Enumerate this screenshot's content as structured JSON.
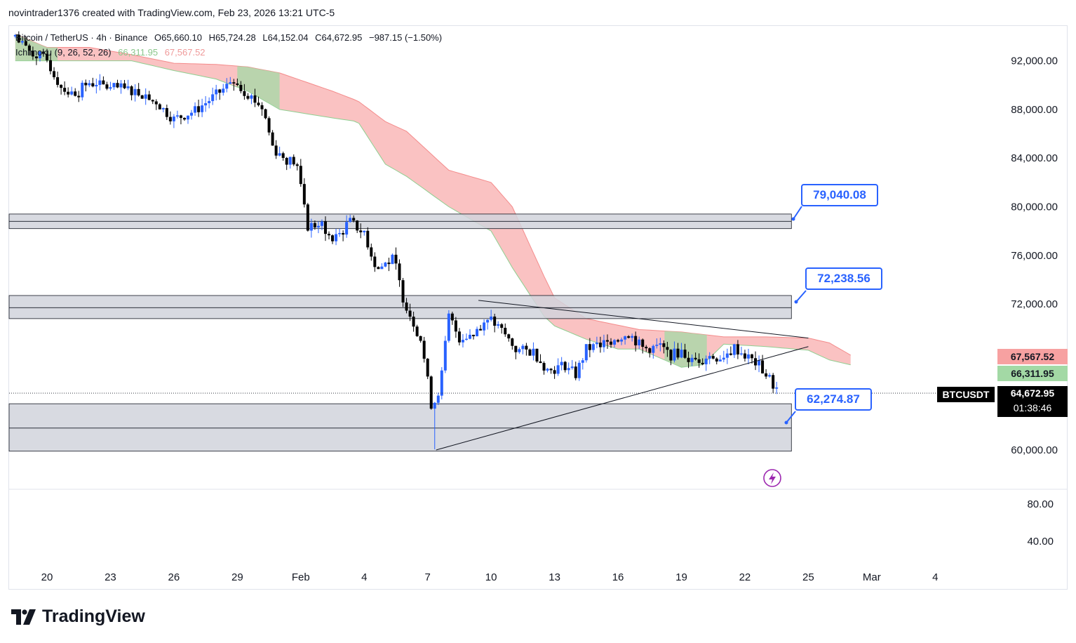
{
  "credit": "novintrader1376 created with TradingView.com, Feb 23, 2026 13:21 UTC-5",
  "legend": {
    "symbol": "Bitcoin / TetherUS · 4h · Binance",
    "open": "O65,660.10",
    "high": "H65,724.28",
    "low": "L64,152.04",
    "close": "C64,672.95",
    "change": "−987.15 (−1.50%)",
    "indicator": "Ichimoku (9, 26, 52, 26)",
    "ind_val1": "66,311.95",
    "ind_val2": "67,567.52"
  },
  "price_tags": {
    "span_b": "67,567.52",
    "span_a": "66,311.95",
    "symbol": "BTCUSDT",
    "last": "64,672.95",
    "countdown": "01:38:46"
  },
  "callouts": [
    "79,040.08",
    "72,238.56",
    "62,274.87"
  ],
  "logo": "TradingView",
  "colors": {
    "up": "#2962ff",
    "down": "#000000",
    "cloud_bear": "#f7a1a1",
    "cloud_bull": "#a3d9a5",
    "callout": "#2962ff",
    "zone": "#d1d4dc"
  },
  "chart_data": {
    "type": "candlestick",
    "symbol": "BTCUSDT",
    "timeframe": "4h",
    "y_axis_labels": [
      "92,000.00",
      "88,000.00",
      "84,000.00",
      "80,000.00",
      "76,000.00",
      "72,000.00",
      "60,000.00"
    ],
    "y_ticks": [
      92000,
      88000,
      84000,
      80000,
      76000,
      72000,
      60000
    ],
    "oscillator_labels": [
      "80.00",
      "40.00"
    ],
    "x_axis_labels": [
      "20",
      "23",
      "26",
      "29",
      "Feb",
      "4",
      "7",
      "10",
      "13",
      "16",
      "19",
      "22",
      "25",
      "Mar",
      "4"
    ],
    "x_days": [
      0,
      3,
      6,
      9,
      12,
      15,
      18,
      21,
      24,
      27,
      30,
      33,
      36,
      39,
      42
    ],
    "x_range_days": [
      -1.5,
      45
    ],
    "y_range": [
      56500,
      95300
    ],
    "key_closes": [
      [
        -1.5,
        94000
      ],
      [
        -1.2,
        93200
      ],
      [
        0,
        92000
      ],
      [
        0.6,
        90000
      ],
      [
        1.2,
        89200
      ],
      [
        2,
        90200
      ],
      [
        3,
        89800
      ],
      [
        4,
        89600
      ],
      [
        5,
        89000
      ],
      [
        5.5,
        88000
      ],
      [
        6,
        87200
      ],
      [
        7,
        87900
      ],
      [
        8,
        89200
      ],
      [
        8.8,
        90300
      ],
      [
        9.5,
        89300
      ],
      [
        10.2,
        88100
      ],
      [
        10.7,
        84800
      ],
      [
        11.3,
        83900
      ],
      [
        11.8,
        83600
      ],
      [
        12.3,
        78400
      ],
      [
        13,
        78600
      ],
      [
        13.5,
        77100
      ],
      [
        14.3,
        78800
      ],
      [
        15,
        77800
      ],
      [
        15.6,
        74800
      ],
      [
        16.4,
        75800
      ],
      [
        16.8,
        72700
      ],
      [
        17.2,
        71000
      ],
      [
        17.7,
        69000
      ],
      [
        18.2,
        63400
      ],
      [
        18.6,
        65300
      ],
      [
        19,
        71000
      ],
      [
        19.5,
        69200
      ],
      [
        20.3,
        69700
      ],
      [
        21,
        70700
      ],
      [
        21.6,
        69600
      ],
      [
        22.2,
        68200
      ],
      [
        23,
        68100
      ],
      [
        23.7,
        66500
      ],
      [
        24.5,
        67000
      ],
      [
        25,
        66200
      ],
      [
        25.5,
        68300
      ],
      [
        26.3,
        68700
      ],
      [
        26.9,
        69200
      ],
      [
        27.5,
        69600
      ],
      [
        28.2,
        68300
      ],
      [
        29,
        68500
      ],
      [
        29.5,
        67800
      ],
      [
        30,
        68100
      ],
      [
        30.5,
        67300
      ],
      [
        31.2,
        67700
      ],
      [
        31.8,
        67600
      ],
      [
        32.5,
        68400
      ],
      [
        33,
        67800
      ],
      [
        33.7,
        66900
      ],
      [
        34.2,
        65700
      ],
      [
        34.6,
        64700
      ]
    ],
    "ichimoku": {
      "params": [
        9,
        26,
        52,
        26
      ],
      "span_a": 66311.95,
      "span_b": 67567.52,
      "cloud_top": [
        [
          -1.5,
          94200
        ],
        [
          0,
          93100
        ],
        [
          2,
          93100
        ],
        [
          4,
          92500
        ],
        [
          6,
          91800
        ],
        [
          8,
          91700
        ],
        [
          9.5,
          91500
        ],
        [
          11,
          91000
        ],
        [
          13.5,
          89500
        ],
        [
          14.7,
          88700
        ],
        [
          16,
          87000
        ],
        [
          17,
          86200
        ],
        [
          19,
          83000
        ],
        [
          21,
          82000
        ],
        [
          22,
          80000
        ],
        [
          23.5,
          74300
        ],
        [
          24,
          72500
        ],
        [
          25.5,
          70800
        ],
        [
          28,
          69900
        ],
        [
          30,
          69700
        ],
        [
          32,
          69300
        ],
        [
          34,
          69300
        ],
        [
          36,
          69200
        ],
        [
          37,
          68800
        ],
        [
          38,
          67800
        ]
      ],
      "cloud_bottom": [
        [
          -1.5,
          92000
        ],
        [
          0,
          92000
        ],
        [
          4,
          92000
        ],
        [
          6,
          91200
        ],
        [
          8,
          90500
        ],
        [
          9.5,
          89500
        ],
        [
          11,
          88000
        ],
        [
          13.5,
          87300
        ],
        [
          14.7,
          87000
        ],
        [
          16,
          83500
        ],
        [
          17,
          82500
        ],
        [
          19,
          80000
        ],
        [
          21,
          78000
        ],
        [
          22,
          75000
        ],
        [
          23.5,
          71000
        ],
        [
          24,
          70200
        ],
        [
          25.5,
          69100
        ],
        [
          27,
          68300
        ],
        [
          28,
          68300
        ],
        [
          30,
          66800
        ],
        [
          31,
          67000
        ],
        [
          32,
          68700
        ],
        [
          34,
          68500
        ],
        [
          36,
          68200
        ],
        [
          37,
          67400
        ],
        [
          38,
          67000
        ]
      ],
      "bullish_segments": [
        [
          -1.5,
          0.5
        ],
        [
          9,
          11
        ],
        [
          29.2,
          31.2
        ]
      ]
    },
    "zones": [
      {
        "top": 79400,
        "bottom": 78200,
        "mid": 78800,
        "end_day": 35.2
      },
      {
        "top": 72700,
        "bottom": 70800,
        "mid": 71700,
        "end_day": 35.2
      },
      {
        "top": 63800,
        "bottom": 59900,
        "mid": 61800,
        "end_day": 35.2
      }
    ],
    "trendlines": [
      {
        "from": [
          20.4,
          72300
        ],
        "to": [
          36,
          69200
        ]
      },
      {
        "from": [
          18.4,
          60000
        ],
        "to": [
          36,
          68500
        ]
      }
    ],
    "last_price": 64672.95
  }
}
